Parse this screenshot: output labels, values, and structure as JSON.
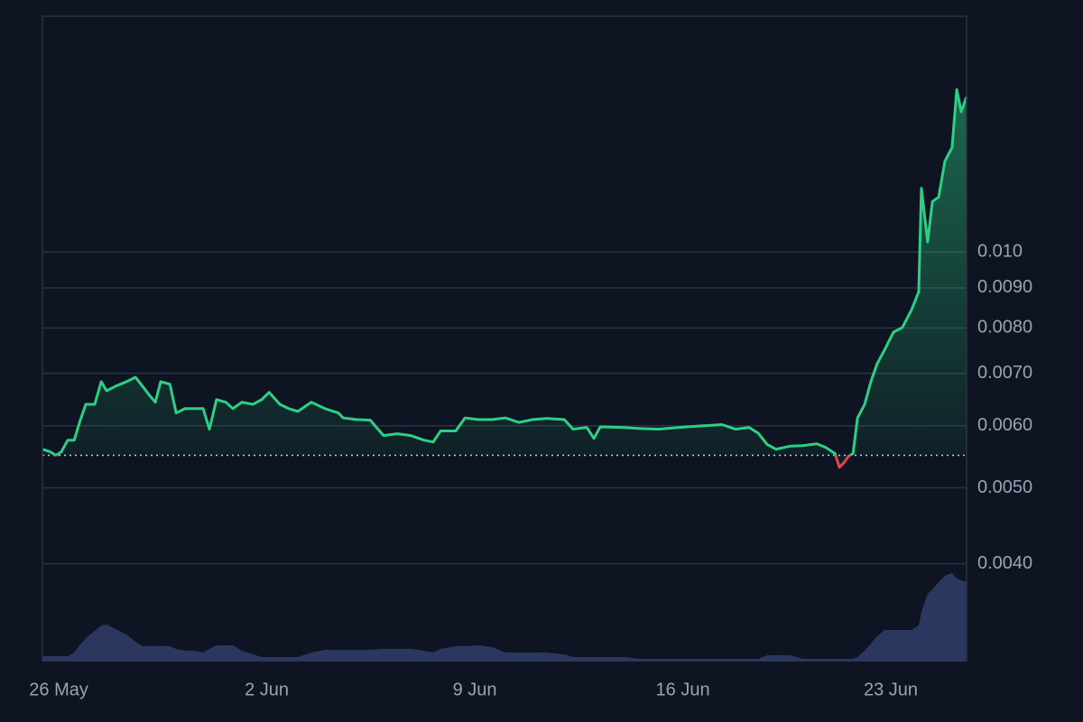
{
  "chart_data": {
    "type": "line",
    "log_scale": true,
    "grid": true,
    "color": "#2bd085",
    "down_color": "#e5414f",
    "baseline": 0.0055,
    "volume_color": "#2c3760",
    "xlim": [
      -0.55,
      30.55
    ],
    "ylim": [
      0.003,
      0.02
    ],
    "xticks": [
      {
        "value": 0,
        "label": "26 May"
      },
      {
        "value": 7,
        "label": "2 Jun"
      },
      {
        "value": 14,
        "label": "9 Jun"
      },
      {
        "value": 21,
        "label": "16 Jun"
      },
      {
        "value": 28,
        "label": "23 Jun"
      }
    ],
    "yticks": [
      {
        "value": 0.004,
        "label": "0.0040"
      },
      {
        "value": 0.005,
        "label": "0.0050"
      },
      {
        "value": 0.006,
        "label": "0.0060"
      },
      {
        "value": 0.007,
        "label": "0.0070"
      },
      {
        "value": 0.008,
        "label": "0.0080"
      },
      {
        "value": 0.009,
        "label": "0.0090"
      },
      {
        "value": 0.01,
        "label": "0.010"
      }
    ],
    "x": [
      -0.55,
      -0.3,
      -0.09,
      0.09,
      0.3,
      0.52,
      0.7,
      0.91,
      1.21,
      1.43,
      1.61,
      1.91,
      2.28,
      2.58,
      2.82,
      3.04,
      3.25,
      3.43,
      3.74,
      3.95,
      4.25,
      4.56,
      4.86,
      5.07,
      5.31,
      5.62,
      5.86,
      6.16,
      6.53,
      6.83,
      7.08,
      7.44,
      7.74,
      8.05,
      8.5,
      8.96,
      9.41,
      9.57,
      10.02,
      10.48,
      10.93,
      11.39,
      11.84,
      12.3,
      12.6,
      12.85,
      13.36,
      13.67,
      14.12,
      14.58,
      15.03,
      15.49,
      15.94,
      16.4,
      17.01,
      17.31,
      17.77,
      18.01,
      18.22,
      18.98,
      19.59,
      20.19,
      21.11,
      21.71,
      22.32,
      22.78,
      23.23,
      23.54,
      23.84,
      24.14,
      24.6,
      25.05,
      25.51,
      25.81,
      26.12,
      26.27,
      26.42,
      26.57,
      26.73,
      26.88,
      27.12,
      27.33,
      27.54,
      27.79,
      28.09,
      28.39,
      28.7,
      28.94,
      29.03,
      29.24,
      29.4,
      29.61,
      29.82,
      30.06,
      30.22,
      30.37,
      30.55
    ],
    "values": [
      0.0056,
      0.00556,
      0.0055,
      0.00556,
      0.00575,
      0.00575,
      0.00606,
      0.00639,
      0.00639,
      0.00683,
      0.00665,
      0.00674,
      0.00683,
      0.00692,
      0.00674,
      0.00657,
      0.00643,
      0.00683,
      0.00678,
      0.00623,
      0.00631,
      0.00631,
      0.00631,
      0.00594,
      0.00648,
      0.00643,
      0.00631,
      0.00643,
      0.00639,
      0.00648,
      0.00662,
      0.00639,
      0.00631,
      0.00626,
      0.00643,
      0.00631,
      0.00623,
      0.00614,
      0.00611,
      0.0061,
      0.00583,
      0.00586,
      0.00583,
      0.00575,
      0.00572,
      0.00591,
      0.00591,
      0.00614,
      0.00611,
      0.00611,
      0.00614,
      0.00606,
      0.00611,
      0.00613,
      0.00611,
      0.00594,
      0.00597,
      0.00578,
      0.00598,
      0.00597,
      0.00595,
      0.00594,
      0.00598,
      0.006,
      0.00602,
      0.00594,
      0.00597,
      0.00587,
      0.00568,
      0.0056,
      0.00565,
      0.00566,
      0.00569,
      0.00563,
      0.00553,
      0.00531,
      0.00538,
      0.00548,
      0.00553,
      0.00614,
      0.00639,
      0.00683,
      0.0072,
      0.0075,
      0.0079,
      0.00801,
      0.00844,
      0.0089,
      0.01206,
      0.0103,
      0.0116,
      0.01175,
      0.01306,
      0.01359,
      0.01612,
      0.0151,
      0.01578
    ],
    "volume": [
      6,
      6,
      6,
      6,
      6,
      10,
      18,
      26,
      34,
      40,
      41,
      36,
      30,
      22,
      17,
      17,
      17,
      17,
      17,
      14,
      12,
      12,
      10,
      14,
      18,
      18,
      18,
      12,
      8,
      5,
      5,
      5,
      5,
      5,
      10,
      13,
      13,
      13,
      13,
      13,
      14,
      14,
      14,
      12,
      10,
      14,
      17,
      17,
      18,
      16,
      10,
      10,
      10,
      10,
      8,
      5,
      5,
      5,
      5,
      5,
      3,
      3,
      3,
      3,
      3,
      3,
      3,
      3,
      7,
      7,
      7,
      3,
      3,
      3,
      3,
      3,
      3,
      3,
      3,
      5,
      12,
      20,
      28,
      35,
      35,
      35,
      35,
      40,
      55,
      75,
      80,
      88,
      95,
      98,
      92,
      90,
      88
    ]
  }
}
